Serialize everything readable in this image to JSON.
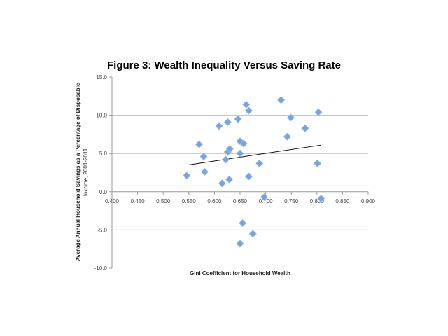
{
  "chart_data": {
    "type": "scatter",
    "title": "Figure 3: Wealth Inequality Versus Saving Rate",
    "xlabel": "Gini Coefficient for Household Wealth",
    "ylabel_lines": [
      "Average Annual Household Savings as a Percentage of Disposable",
      "Income, 2001-2011"
    ],
    "xlim": [
      0.4,
      0.9
    ],
    "ylim": [
      -10,
      15
    ],
    "xticks": [
      "0.400",
      "0.450",
      "0.500",
      "0.550",
      "0.600",
      "0.650",
      "0.700",
      "0.750",
      "0.800",
      "0.850",
      "0.900"
    ],
    "yticks": [
      "15.0",
      "10.0",
      "5.0",
      "0.0",
      "-5.0",
      "-10.0"
    ],
    "grid": "horizontal",
    "marker_color": "#7ba3d6",
    "points": [
      [
        0.546,
        2.1
      ],
      [
        0.57,
        6.2
      ],
      [
        0.579,
        4.6
      ],
      [
        0.581,
        2.6
      ],
      [
        0.609,
        8.6
      ],
      [
        0.615,
        1.1
      ],
      [
        0.622,
        4.2
      ],
      [
        0.626,
        9.1
      ],
      [
        0.626,
        5.2
      ],
      [
        0.63,
        5.6
      ],
      [
        0.629,
        1.6
      ],
      [
        0.646,
        9.5
      ],
      [
        0.65,
        6.6
      ],
      [
        0.65,
        5.0
      ],
      [
        0.657,
        6.3
      ],
      [
        0.662,
        11.4
      ],
      [
        0.667,
        10.6
      ],
      [
        0.688,
        3.7
      ],
      [
        0.667,
        2.0
      ],
      [
        0.697,
        -0.7
      ],
      [
        0.73,
        12.0
      ],
      [
        0.803,
        10.4
      ],
      [
        0.749,
        9.7
      ],
      [
        0.777,
        8.3
      ],
      [
        0.742,
        7.2
      ],
      [
        0.801,
        3.7
      ],
      [
        0.808,
        -0.9
      ],
      [
        0.655,
        -4.1
      ],
      [
        0.675,
        -5.5
      ],
      [
        0.65,
        -6.8
      ]
    ],
    "trendline": {
      "type": "linear",
      "from": [
        0.548,
        3.5
      ],
      "to": [
        0.808,
        6.1
      ]
    }
  }
}
